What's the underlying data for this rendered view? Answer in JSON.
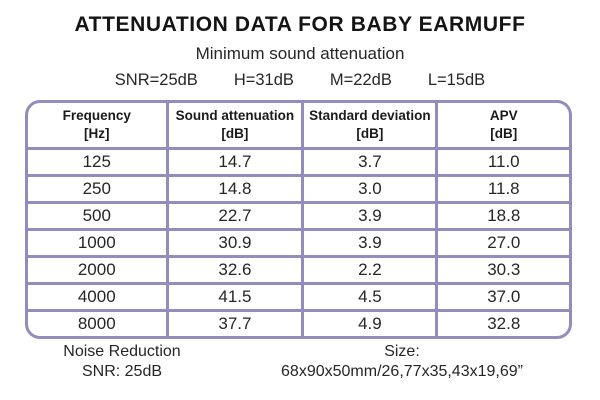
{
  "title": "ATTENUATION DATA FOR BABY EARMUFF",
  "subtitle": "Minimum sound attenuation",
  "summary": {
    "items": [
      "SNR=25dB",
      "H=31dB",
      "M=22dB",
      "L=15dB"
    ]
  },
  "table": {
    "columns": [
      {
        "label": "Frequency",
        "unit": "[Hz]"
      },
      {
        "label": "Sound attenuation",
        "unit": "[dB]"
      },
      {
        "label": "Standard deviation",
        "unit": "[dB]"
      },
      {
        "label": "APV",
        "unit": "[dB]"
      }
    ],
    "rows": [
      [
        "125",
        "14.7",
        "3.7",
        "11.0"
      ],
      [
        "250",
        "14.8",
        "3.0",
        "11.8"
      ],
      [
        "500",
        "22.7",
        "3.9",
        "18.8"
      ],
      [
        "1000",
        "30.9",
        "3.9",
        "27.0"
      ],
      [
        "2000",
        "32.6",
        "2.2",
        "30.3"
      ],
      [
        "4000",
        "41.5",
        "4.5",
        "37.0"
      ],
      [
        "8000",
        "37.7",
        "4.9",
        "32.8"
      ]
    ]
  },
  "footer": {
    "left_line1": "Noise Reduction",
    "left_line2": "SNR: 25dB",
    "right_line1": "Size:",
    "right_line2": "68x90x50mm/26,77x35,43x19,69”"
  },
  "colors": {
    "border": "#948cbc",
    "text": "#1e1e1e",
    "background": "#ffffff"
  },
  "chart_data": {
    "type": "table",
    "title": "ATTENUATION DATA FOR BABY EARMUFF",
    "subtitle": "Minimum sound attenuation",
    "summary_values": {
      "SNR": "25dB",
      "H": "31dB",
      "M": "22dB",
      "L": "15dB"
    },
    "categories": [
      125,
      250,
      500,
      1000,
      2000,
      4000,
      8000
    ],
    "xlabel": "Frequency [Hz]",
    "series": [
      {
        "name": "Sound attenuation [dB]",
        "values": [
          14.7,
          14.8,
          22.7,
          30.9,
          32.6,
          41.5,
          37.7
        ]
      },
      {
        "name": "Standard deviation [dB]",
        "values": [
          3.7,
          3.0,
          3.9,
          3.9,
          2.2,
          4.5,
          4.9
        ]
      },
      {
        "name": "APV [dB]",
        "values": [
          11.0,
          11.8,
          18.8,
          27.0,
          30.3,
          37.0,
          32.8
        ]
      }
    ],
    "notes": [
      "Noise Reduction SNR: 25dB",
      "Size: 68x90x50mm/26,77x35,43x19,69”"
    ]
  }
}
